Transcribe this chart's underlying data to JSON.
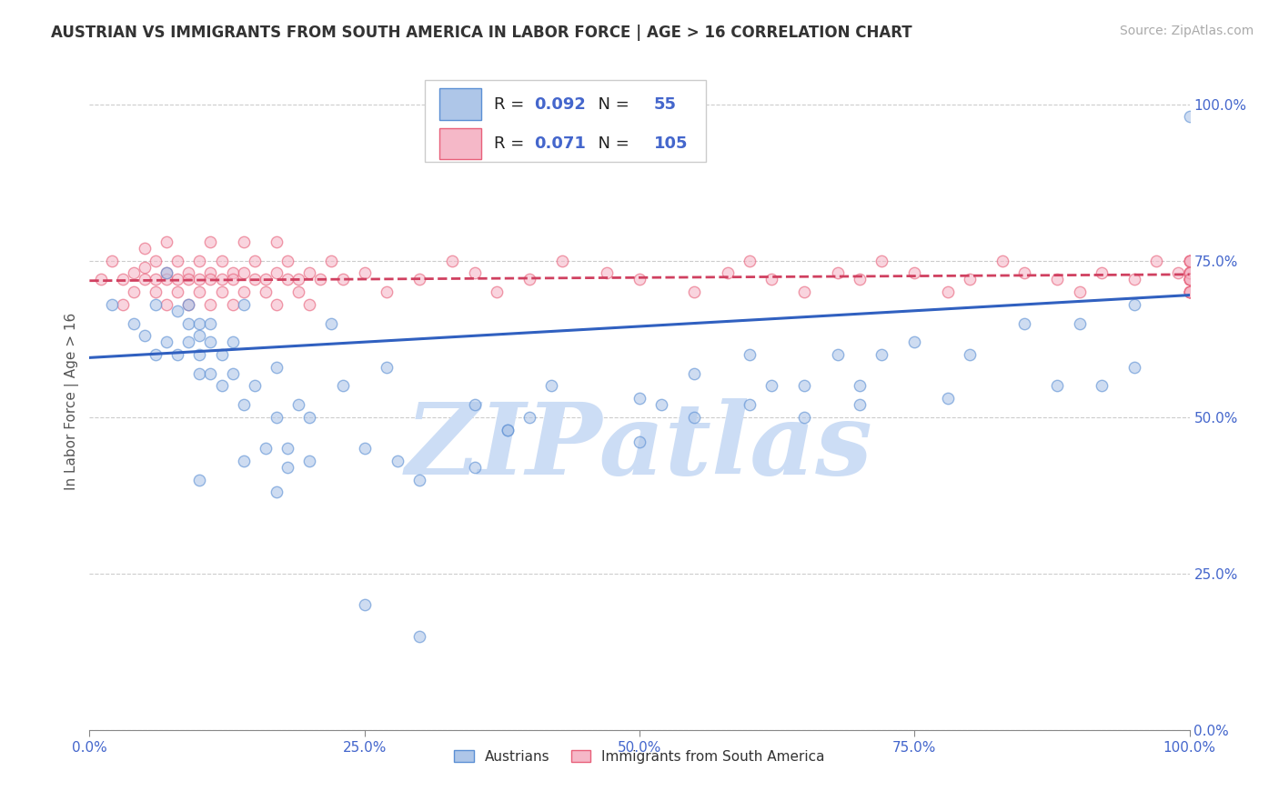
{
  "title": "AUSTRIAN VS IMMIGRANTS FROM SOUTH AMERICA IN LABOR FORCE | AGE > 16 CORRELATION CHART",
  "source": "Source: ZipAtlas.com",
  "ylabel": "In Labor Force | Age > 16",
  "blue_R": 0.092,
  "blue_N": 55,
  "pink_R": 0.071,
  "pink_N": 105,
  "blue_scatter_color": "#aec6e8",
  "blue_edge_color": "#5b8fd4",
  "pink_scatter_color": "#f5b8c8",
  "pink_edge_color": "#e8607a",
  "blue_line_color": "#3060c0",
  "pink_line_color": "#d04060",
  "background_color": "#ffffff",
  "grid_color": "#cccccc",
  "title_color": "#333333",
  "source_color": "#aaaaaa",
  "axis_tick_color": "#4466cc",
  "watermark_color": "#ccddf5",
  "blue_x": [
    0.02,
    0.04,
    0.05,
    0.06,
    0.06,
    0.07,
    0.07,
    0.08,
    0.08,
    0.09,
    0.09,
    0.09,
    0.1,
    0.1,
    0.1,
    0.1,
    0.11,
    0.11,
    0.11,
    0.12,
    0.12,
    0.13,
    0.13,
    0.14,
    0.14,
    0.15,
    0.16,
    0.17,
    0.17,
    0.18,
    0.19,
    0.2,
    0.22,
    0.23,
    0.25,
    0.27,
    0.3,
    0.35,
    0.38,
    0.42,
    0.5,
    0.52,
    0.55,
    0.6,
    0.62,
    0.65,
    0.68,
    0.7,
    0.72,
    0.75,
    0.8,
    0.85,
    0.9,
    0.95,
    1.0
  ],
  "blue_y": [
    0.68,
    0.65,
    0.63,
    0.68,
    0.6,
    0.73,
    0.62,
    0.67,
    0.6,
    0.65,
    0.62,
    0.68,
    0.65,
    0.6,
    0.57,
    0.63,
    0.65,
    0.62,
    0.57,
    0.6,
    0.55,
    0.62,
    0.57,
    0.52,
    0.68,
    0.55,
    0.45,
    0.58,
    0.5,
    0.45,
    0.52,
    0.5,
    0.65,
    0.55,
    0.2,
    0.58,
    0.15,
    0.52,
    0.48,
    0.55,
    0.53,
    0.52,
    0.57,
    0.6,
    0.55,
    0.55,
    0.6,
    0.55,
    0.6,
    0.62,
    0.6,
    0.65,
    0.65,
    0.68,
    0.98
  ],
  "blue_extra_x": [
    0.1,
    0.14,
    0.17,
    0.18,
    0.2,
    0.25,
    0.28,
    0.3,
    0.35,
    0.38,
    0.4,
    0.5,
    0.55,
    0.6,
    0.65,
    0.7,
    0.78,
    0.88,
    0.92,
    0.95
  ],
  "blue_extra_y": [
    0.4,
    0.43,
    0.38,
    0.42,
    0.43,
    0.45,
    0.43,
    0.4,
    0.42,
    0.48,
    0.5,
    0.46,
    0.5,
    0.52,
    0.5,
    0.52,
    0.53,
    0.55,
    0.55,
    0.58
  ],
  "pink_x": [
    0.01,
    0.02,
    0.03,
    0.03,
    0.04,
    0.04,
    0.05,
    0.05,
    0.05,
    0.06,
    0.06,
    0.06,
    0.07,
    0.07,
    0.07,
    0.07,
    0.08,
    0.08,
    0.08,
    0.09,
    0.09,
    0.09,
    0.1,
    0.1,
    0.1,
    0.11,
    0.11,
    0.11,
    0.11,
    0.12,
    0.12,
    0.12,
    0.13,
    0.13,
    0.13,
    0.14,
    0.14,
    0.14,
    0.15,
    0.15,
    0.16,
    0.16,
    0.17,
    0.17,
    0.17,
    0.18,
    0.18,
    0.19,
    0.19,
    0.2,
    0.2,
    0.21,
    0.22,
    0.23,
    0.25,
    0.27,
    0.3,
    0.33,
    0.35,
    0.37,
    0.4,
    0.43,
    0.47,
    0.5,
    0.55,
    0.58,
    0.6,
    0.62,
    0.65,
    0.68,
    0.7,
    0.72,
    0.75,
    0.78,
    0.8,
    0.83,
    0.85,
    0.88,
    0.9,
    0.92,
    0.95,
    0.97,
    0.99,
    1.0,
    1.0,
    1.0,
    1.0,
    1.0,
    1.0,
    1.0,
    1.0,
    1.0,
    1.0,
    1.0,
    1.0,
    1.0,
    1.0,
    1.0,
    1.0,
    1.0,
    1.0,
    1.0,
    1.0,
    1.0,
    1.0
  ],
  "pink_y": [
    0.72,
    0.75,
    0.72,
    0.68,
    0.73,
    0.7,
    0.74,
    0.72,
    0.77,
    0.72,
    0.75,
    0.7,
    0.73,
    0.78,
    0.72,
    0.68,
    0.72,
    0.75,
    0.7,
    0.73,
    0.72,
    0.68,
    0.72,
    0.75,
    0.7,
    0.73,
    0.78,
    0.72,
    0.68,
    0.72,
    0.75,
    0.7,
    0.73,
    0.72,
    0.68,
    0.73,
    0.78,
    0.7,
    0.72,
    0.75,
    0.72,
    0.7,
    0.73,
    0.78,
    0.68,
    0.72,
    0.75,
    0.72,
    0.7,
    0.73,
    0.68,
    0.72,
    0.75,
    0.72,
    0.73,
    0.7,
    0.72,
    0.75,
    0.73,
    0.7,
    0.72,
    0.75,
    0.73,
    0.72,
    0.7,
    0.73,
    0.75,
    0.72,
    0.7,
    0.73,
    0.72,
    0.75,
    0.73,
    0.7,
    0.72,
    0.75,
    0.73,
    0.72,
    0.7,
    0.73,
    0.72,
    0.75,
    0.73,
    0.7,
    0.72,
    0.73,
    0.75,
    0.72,
    0.7,
    0.73,
    0.72,
    0.75,
    0.73,
    0.7,
    0.72,
    0.73,
    0.75,
    0.72,
    0.7,
    0.73,
    0.72,
    0.75,
    0.73,
    0.7,
    0.72
  ],
  "blue_line_x": [
    0.0,
    1.0
  ],
  "blue_line_y": [
    0.595,
    0.695
  ],
  "pink_line_x": [
    0.0,
    1.0
  ],
  "pink_line_y": [
    0.718,
    0.728
  ],
  "xlim": [
    0.0,
    1.0
  ],
  "ylim": [
    0.0,
    1.05
  ],
  "ytick_positions": [
    0.0,
    0.25,
    0.5,
    0.75,
    1.0
  ],
  "ytick_labels": [
    "0.0%",
    "25.0%",
    "50.0%",
    "75.0%",
    "100.0%"
  ],
  "xtick_positions": [
    0.0,
    0.25,
    0.5,
    0.75,
    1.0
  ],
  "xtick_labels": [
    "0.0%",
    "25.0%",
    "50.0%",
    "75.0%",
    "100.0%"
  ],
  "legend_labels": [
    "Austrians",
    "Immigrants from South America"
  ],
  "marker_size": 80,
  "marker_alpha": 0.6,
  "marker_edge_width": 1.0
}
